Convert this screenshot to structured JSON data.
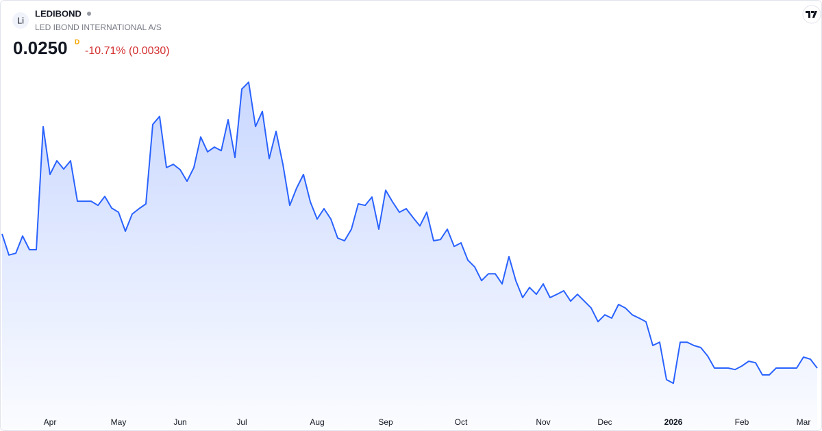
{
  "header": {
    "logo": "Li",
    "ticker": "LEDIBOND",
    "company": "LED IBOND INTERNATIONAL A/S",
    "price": "0.0250",
    "price_flag": "D",
    "change": "-10.71% (0.0030)"
  },
  "chart_data": {
    "type": "line",
    "color": "#2962ff",
    "categories": [
      null,
      null,
      null,
      null,
      null,
      null,
      null,
      "Apr",
      null,
      null,
      null,
      null,
      null,
      null,
      null,
      null,
      null,
      "May",
      null,
      null,
      null,
      null,
      null,
      null,
      null,
      null,
      "Jun",
      null,
      null,
      null,
      null,
      null,
      null,
      null,
      null,
      "Jul",
      null,
      null,
      null,
      null,
      null,
      null,
      null,
      null,
      null,
      null,
      "Aug",
      null,
      null,
      null,
      null,
      null,
      null,
      null,
      null,
      null,
      "Sep",
      null,
      null,
      null,
      null,
      null,
      null,
      null,
      null,
      null,
      null,
      "Oct",
      null,
      null,
      null,
      null,
      null,
      null,
      null,
      null,
      null,
      null,
      null,
      "Nov",
      null,
      null,
      null,
      null,
      null,
      null,
      null,
      null,
      "Dec",
      null,
      null,
      null,
      null,
      null,
      null,
      null,
      null,
      null,
      "2026",
      null,
      null,
      null,
      null,
      null,
      null,
      null,
      null,
      null,
      "Feb",
      null,
      null,
      null,
      null,
      null,
      null,
      null,
      null,
      "Mar",
      null,
      null
    ],
    "values": [
      0.0701,
      0.063,
      0.0636,
      0.0694,
      0.0648,
      0.0648,
      0.1062,
      0.0901,
      0.0947,
      0.0919,
      0.0947,
      0.0811,
      0.0811,
      0.0811,
      0.0797,
      0.0827,
      0.0788,
      0.0774,
      0.071,
      0.0768,
      0.0786,
      0.0802,
      0.1069,
      0.1096,
      0.0924,
      0.0935,
      0.0917,
      0.0878,
      0.0924,
      0.1027,
      0.0977,
      0.0993,
      0.0981,
      0.1085,
      0.0958,
      0.1188,
      0.1211,
      0.1062,
      0.1113,
      0.0954,
      0.1046,
      0.0935,
      0.0797,
      0.0855,
      0.0901,
      0.0809,
      0.0751,
      0.0786,
      0.0751,
      0.0687,
      0.0678,
      0.0717,
      0.0802,
      0.0797,
      0.0825,
      0.0717,
      0.0848,
      0.0809,
      0.0774,
      0.0786,
      0.0756,
      0.0728,
      0.0774,
      0.0678,
      0.0682,
      0.0717,
      0.0659,
      0.0671,
      0.0613,
      0.059,
      0.0544,
      0.0567,
      0.0567,
      0.0533,
      0.0625,
      0.0544,
      0.0487,
      0.0521,
      0.0498,
      0.0533,
      0.0487,
      0.0498,
      0.051,
      0.0475,
      0.0498,
      0.0475,
      0.0452,
      0.0406,
      0.0429,
      0.0418,
      0.0464,
      0.0452,
      0.0429,
      0.0418,
      0.0406,
      0.0326,
      0.0337,
      0.0211,
      0.0199,
      0.0337,
      0.0337,
      0.0326,
      0.0319,
      0.0291,
      0.025,
      0.025,
      0.025,
      0.0245,
      0.0257,
      0.0273,
      0.0268,
      0.0227,
      0.0227,
      0.025,
      0.025,
      0.025,
      0.025,
      0.0287,
      0.028,
      0.025
    ],
    "ylim": [
      0.0135,
      0.13
    ]
  }
}
